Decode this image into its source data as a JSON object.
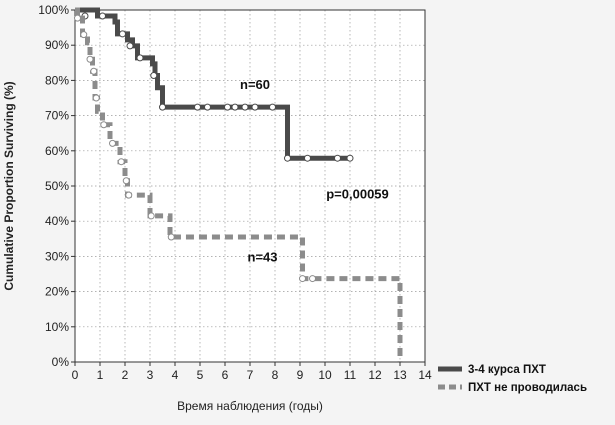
{
  "chart_data": {
    "type": "line",
    "title": "",
    "xlabel": "Время наблюдения (годы)",
    "ylabel": "Cumulative Proportion Surviving (%)",
    "xlim": [
      0,
      14
    ],
    "ylim": [
      0,
      100
    ],
    "x_ticks": [
      "0",
      "1",
      "2",
      "3",
      "4",
      "5",
      "6",
      "7",
      "8",
      "9",
      "10",
      "11",
      "12",
      "13",
      "14"
    ],
    "y_ticks": [
      "0%",
      "10%",
      "20%",
      "30%",
      "40%",
      "50%",
      "60%",
      "70%",
      "80%",
      "90%",
      "100%"
    ],
    "grid": true,
    "legend_position": "bottom-right-outside",
    "series": [
      {
        "name": "3-4 курса ПХТ",
        "color": "#4a4a4a",
        "style": "solid-step",
        "steps": [
          [
            0,
            100
          ],
          [
            0.9,
            98.3
          ],
          [
            1.6,
            96.6
          ],
          [
            1.7,
            93.2
          ],
          [
            2.1,
            91.5
          ],
          [
            2.3,
            89.8
          ],
          [
            2.5,
            86.4
          ],
          [
            3.1,
            84.7
          ],
          [
            3.2,
            81.4
          ],
          [
            3.3,
            77.9
          ],
          [
            3.5,
            72.4
          ],
          [
            8.5,
            57.9
          ],
          [
            11.0,
            57.9
          ]
        ],
        "censored": [
          [
            0.4,
            98.3
          ],
          [
            1.1,
            98.3
          ],
          [
            1.9,
            93.2
          ],
          [
            2.2,
            89.8
          ],
          [
            2.6,
            86.4
          ],
          [
            3.15,
            81.4
          ],
          [
            3.5,
            72.4
          ],
          [
            4.9,
            72.4
          ],
          [
            5.3,
            72.4
          ],
          [
            6.1,
            72.4
          ],
          [
            6.4,
            72.4
          ],
          [
            6.8,
            72.4
          ],
          [
            7.2,
            72.4
          ],
          [
            7.9,
            72.4
          ],
          [
            8.5,
            57.9
          ],
          [
            9.3,
            57.9
          ],
          [
            10.5,
            57.9
          ],
          [
            11.0,
            57.9
          ]
        ]
      },
      {
        "name": "ПХТ не проводилась",
        "color": "#8c8c8c",
        "style": "dashed-step",
        "steps": [
          [
            0,
            100
          ],
          [
            0.1,
            97.7
          ],
          [
            0.3,
            93.0
          ],
          [
            0.5,
            90.7
          ],
          [
            0.6,
            86.0
          ],
          [
            0.7,
            82.6
          ],
          [
            0.8,
            75.0
          ],
          [
            0.9,
            71.2
          ],
          [
            1.1,
            67.4
          ],
          [
            1.4,
            62.1
          ],
          [
            1.8,
            56.9
          ],
          [
            2.0,
            51.5
          ],
          [
            2.1,
            47.4
          ],
          [
            3.0,
            41.5
          ],
          [
            3.8,
            35.5
          ],
          [
            9.1,
            23.7
          ],
          [
            13.0,
            0
          ]
        ],
        "censored": [
          [
            0.1,
            97.7
          ],
          [
            0.35,
            93.0
          ],
          [
            0.6,
            86.0
          ],
          [
            0.75,
            82.6
          ],
          [
            0.85,
            75.0
          ],
          [
            1.15,
            67.4
          ],
          [
            1.5,
            62.1
          ],
          [
            1.85,
            56.9
          ],
          [
            2.05,
            51.5
          ],
          [
            2.15,
            47.4
          ],
          [
            3.05,
            41.5
          ],
          [
            3.85,
            35.5
          ],
          [
            9.1,
            23.7
          ],
          [
            9.5,
            23.7
          ]
        ]
      }
    ],
    "annotations": [
      {
        "text": "n=60",
        "x": 7.2,
        "y": 77.5
      },
      {
        "text": "p=0,00059",
        "x": 11.3,
        "y": 46.5
      },
      {
        "text": "n=43",
        "x": 7.5,
        "y": 28.5
      }
    ]
  }
}
